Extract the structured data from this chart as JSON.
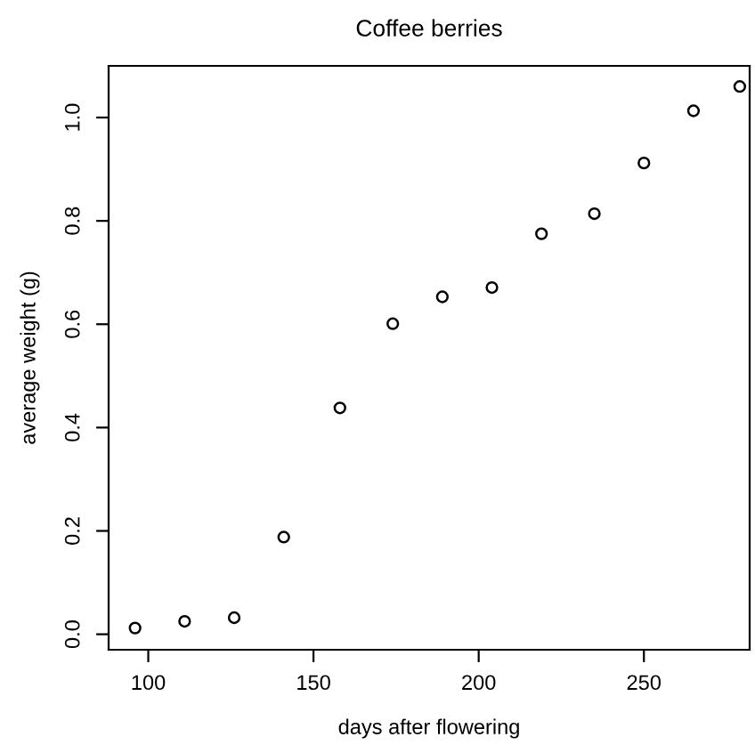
{
  "chart_data": {
    "type": "scatter",
    "title": "Coffee berries",
    "xlabel": "days after flowering",
    "ylabel": "average weight (g)",
    "x": [
      96,
      111,
      126,
      141,
      158,
      174,
      189,
      204,
      219,
      235,
      250,
      265,
      279
    ],
    "values": [
      0.012,
      0.025,
      0.032,
      0.188,
      0.438,
      0.601,
      0.653,
      0.671,
      0.775,
      0.814,
      0.912,
      1.013,
      1.06
    ],
    "color": "#000000",
    "marker": "circle",
    "xlim": [
      88,
      282
    ],
    "ylim": [
      -0.03,
      1.1
    ],
    "xticks": [
      100,
      150,
      200,
      250
    ],
    "yticks": [
      {
        "value": 0,
        "label": "0.0"
      },
      {
        "value": 0.2,
        "label": "0.2"
      },
      {
        "value": 0.4,
        "label": "0.4"
      },
      {
        "value": 0.6,
        "label": "0.6"
      },
      {
        "value": 0.8,
        "label": "0.8"
      },
      {
        "value": 1.0,
        "label": "1.0"
      }
    ],
    "grid": false,
    "legend": false
  }
}
